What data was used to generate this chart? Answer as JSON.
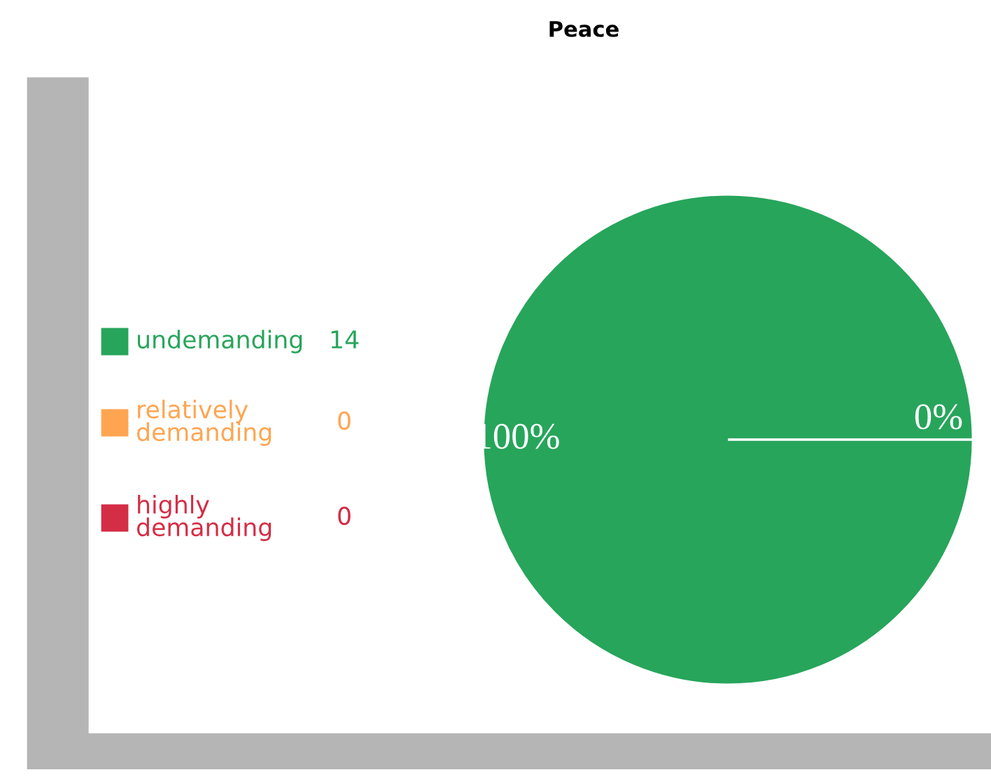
{
  "chart_data": {
    "type": "pie",
    "title": "Peace",
    "categories": [
      "undemanding",
      "relatively demanding",
      "highly demanding"
    ],
    "values": [
      14,
      0,
      0
    ],
    "colors": [
      "#27a55b",
      "#ffa552",
      "#d42e46"
    ],
    "value_labels": [
      "14",
      "0",
      "0"
    ],
    "annotations": [
      "100%",
      "0%"
    ],
    "legend": "left"
  }
}
